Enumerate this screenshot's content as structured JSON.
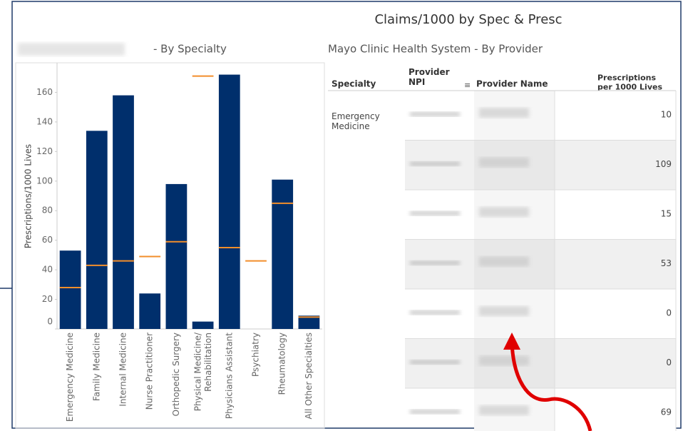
{
  "title": "Claims/1000 by Spec & Presc",
  "chart_data": {
    "type": "bar",
    "title": "- By Specialty",
    "y_label": "Prescriptions/1000 Lives",
    "categories": [
      "Emergency Medicine",
      "Family Medicine",
      "Internal Medicine",
      "Nurse Practitioner",
      "Orthopedic Surgery",
      "Physical Medicine/\nRehabilitation",
      "Physicians Assistant",
      "Psychiatry",
      "Rheumatology",
      "All Other Specialties"
    ],
    "values": [
      53,
      134,
      158,
      24,
      98,
      5,
      172,
      null,
      101,
      9
    ],
    "reference_values": [
      28,
      43,
      46,
      49,
      59,
      171,
      55,
      46,
      85,
      8
    ],
    "color": "#002f6c",
    "reference_color": "#f28e2b",
    "ylim": [
      0,
      180
    ],
    "yticks": [
      0,
      20,
      40,
      60,
      80,
      100,
      120,
      140,
      160
    ]
  },
  "table": {
    "title": "Mayo Clinic Health System - By Provider",
    "headers": [
      "Specialty",
      "Provider\nNPI",
      "Provider Name",
      "Prescriptions\nper 1000 Lives"
    ],
    "specialty": "Emergency\nMedicine",
    "values": [
      10,
      109,
      15,
      53,
      0,
      0,
      69
    ]
  }
}
